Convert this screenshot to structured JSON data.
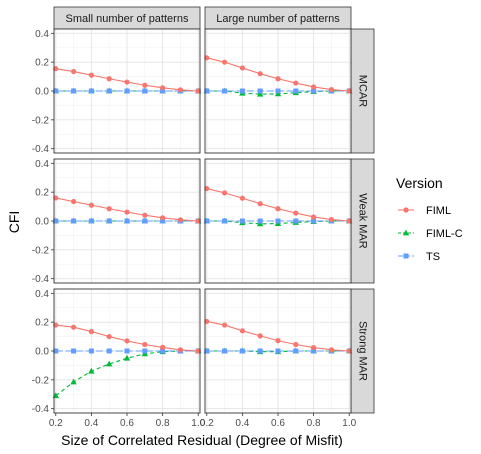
{
  "chart_data": {
    "type": "line",
    "facet_columns": [
      "Small number of patterns",
      "Large number of patterns"
    ],
    "facet_rows": [
      "MCAR",
      "Weak MAR",
      "Strong MAR"
    ],
    "xlabel": "Size of Correlated Residual (Degree of Misfit)",
    "ylabel": "CFI",
    "x": [
      0.2,
      0.3,
      0.4,
      0.5,
      0.6,
      0.7,
      0.8,
      0.9,
      1.0
    ],
    "xlim": [
      0.19,
      1.01
    ],
    "ylim": [
      -0.43,
      0.43
    ],
    "x_ticks": [
      0.2,
      0.4,
      0.6,
      0.8,
      1.0
    ],
    "x_tick_labels": [
      "0.2",
      "0.4",
      "0.6",
      "0.8",
      "1.0"
    ],
    "y_ticks": [
      -0.4,
      -0.2,
      0.0,
      0.2,
      0.4
    ],
    "y_tick_labels": [
      "-0.4",
      "-0.2",
      "0.0",
      "0.2",
      "0.4"
    ],
    "legend": {
      "title": "Version",
      "position": "right",
      "entries": [
        {
          "name": "FIML",
          "color": "#F8766D",
          "shape": "circle",
          "linestyle": "solid"
        },
        {
          "name": "FIML-C",
          "color": "#00BA38",
          "shape": "triangle",
          "linestyle": "dashed"
        },
        {
          "name": "TS",
          "color": "#619CFF",
          "shape": "square",
          "linestyle": "longdash"
        }
      ]
    },
    "panels": [
      {
        "row": "MCAR",
        "col": "Small number of patterns",
        "series": {
          "FIML": [
            0.155,
            0.135,
            0.11,
            0.085,
            0.062,
            0.04,
            0.022,
            0.008,
            0.0
          ],
          "FIML-C": [
            0.0,
            0.0,
            0.0,
            0.0,
            0.0,
            0.0,
            0.0,
            0.0,
            0.0
          ],
          "TS": [
            0.0,
            0.0,
            0.0,
            0.0,
            0.0,
            0.0,
            0.0,
            0.0,
            0.0
          ]
        }
      },
      {
        "row": "MCAR",
        "col": "Large number of patterns",
        "series": {
          "FIML": [
            0.23,
            0.2,
            0.16,
            0.12,
            0.085,
            0.055,
            0.028,
            0.01,
            0.0
          ],
          "FIML-C": [
            0.0,
            0.0,
            -0.015,
            -0.022,
            -0.02,
            -0.012,
            -0.004,
            0.0,
            0.0
          ],
          "TS": [
            0.0,
            0.0,
            0.0,
            0.0,
            0.0,
            0.0,
            0.0,
            0.0,
            0.0
          ]
        }
      },
      {
        "row": "Weak MAR",
        "col": "Small number of patterns",
        "series": {
          "FIML": [
            0.16,
            0.135,
            0.11,
            0.085,
            0.062,
            0.04,
            0.022,
            0.008,
            0.0
          ],
          "FIML-C": [
            0.0,
            0.0,
            0.0,
            0.0,
            0.0,
            0.0,
            0.0,
            0.0,
            0.0
          ],
          "TS": [
            0.0,
            0.0,
            0.0,
            0.0,
            0.0,
            0.0,
            0.0,
            0.0,
            0.0
          ]
        }
      },
      {
        "row": "Weak MAR",
        "col": "Large number of patterns",
        "series": {
          "FIML": [
            0.225,
            0.195,
            0.158,
            0.12,
            0.085,
            0.055,
            0.028,
            0.01,
            0.0
          ],
          "FIML-C": [
            0.0,
            0.0,
            -0.012,
            -0.02,
            -0.018,
            -0.01,
            -0.004,
            0.0,
            0.0
          ],
          "TS": [
            0.0,
            0.0,
            0.0,
            0.0,
            0.0,
            0.0,
            0.0,
            0.0,
            0.0
          ]
        }
      },
      {
        "row": "Strong MAR",
        "col": "Small number of patterns",
        "series": {
          "FIML": [
            0.18,
            0.165,
            0.135,
            0.1,
            0.07,
            0.045,
            0.025,
            0.008,
            0.0
          ],
          "FIML-C": [
            -0.31,
            -0.215,
            -0.14,
            -0.09,
            -0.05,
            -0.02,
            -0.005,
            0.0,
            0.0
          ],
          "TS": [
            0.0,
            0.0,
            0.0,
            0.0,
            0.0,
            0.0,
            0.0,
            0.0,
            0.0
          ]
        }
      },
      {
        "row": "Strong MAR",
        "col": "Large number of patterns",
        "series": {
          "FIML": [
            0.205,
            0.18,
            0.14,
            0.105,
            0.072,
            0.045,
            0.024,
            0.008,
            0.0
          ],
          "FIML-C": [
            0.0,
            0.0,
            0.0,
            -0.005,
            -0.005,
            0.0,
            0.0,
            0.0,
            0.0
          ],
          "TS": [
            0.0,
            0.0,
            0.0,
            0.0,
            0.0,
            0.0,
            0.0,
            0.0,
            0.0
          ]
        }
      }
    ]
  }
}
